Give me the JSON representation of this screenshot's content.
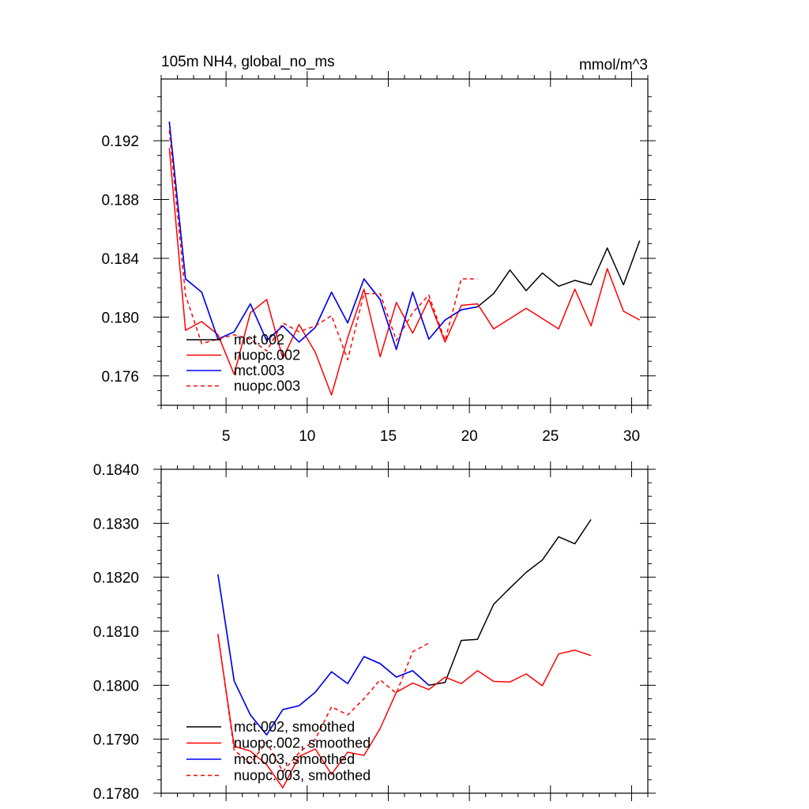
{
  "chart_data": [
    {
      "type": "line",
      "title": "105m NH4, global_no_ms",
      "units": "mmol/m^3",
      "xlim": [
        1,
        31
      ],
      "ylim": [
        0.174,
        0.1962
      ],
      "x_ticks": [
        5,
        10,
        15,
        20,
        25,
        30
      ],
      "x_tick_labels": [
        "5",
        "10",
        "15",
        "20",
        "25",
        "30"
      ],
      "y_ticks": [
        0.176,
        0.18,
        0.184,
        0.188,
        0.192
      ],
      "y_tick_labels": [
        "0.176",
        "0.180",
        "0.184",
        "0.188",
        "0.192"
      ],
      "legend": "bottom-left",
      "series": [
        {
          "name": "mct.002",
          "color": "#000000",
          "dash": false,
          "x": [
            1.5,
            2.5,
            3.5,
            4.5,
            5.5,
            6.5,
            7.5,
            8.5,
            9.5,
            10.5,
            11.5,
            12.5,
            13.5,
            14.5,
            15.5,
            16.5,
            17.5,
            18.5,
            19.5,
            20.5,
            21.5,
            22.5,
            23.5,
            24.5,
            25.5,
            26.5,
            27.5,
            28.5,
            29.5,
            30.5
          ],
          "y": [
            0.1933,
            0.1826,
            0.1817,
            0.1785,
            0.179,
            0.1809,
            0.1784,
            0.1794,
            0.1783,
            0.1793,
            0.1817,
            0.1796,
            0.1826,
            0.1812,
            0.1778,
            0.1817,
            0.1785,
            0.1798,
            0.1805,
            0.1807,
            0.1816,
            0.1832,
            0.1818,
            0.183,
            0.1821,
            0.1825,
            0.1822,
            0.1847,
            0.1822,
            0.1852
          ]
        },
        {
          "name": "nuopc.002",
          "color": "#ff0000",
          "dash": false,
          "x": [
            1.5,
            2.5,
            3.5,
            4.5,
            5.5,
            6.5,
            7.5,
            8.5,
            9.5,
            10.5,
            11.5,
            12.5,
            13.5,
            14.5,
            15.5,
            16.5,
            17.5,
            18.5,
            19.5,
            20.5,
            21.5,
            22.5,
            23.5,
            24.5,
            25.5,
            26.5,
            27.5,
            28.5,
            29.5,
            30.5
          ],
          "y": [
            0.1915,
            0.1791,
            0.1797,
            0.1788,
            0.1761,
            0.1803,
            0.1812,
            0.1772,
            0.1795,
            0.1776,
            0.1747,
            0.1786,
            0.1819,
            0.1773,
            0.181,
            0.1789,
            0.1812,
            0.1783,
            0.1808,
            0.1809,
            0.1792,
            0.1799,
            0.1806,
            0.1799,
            0.1792,
            0.1819,
            0.1794,
            0.1833,
            0.1804,
            0.1798
          ]
        },
        {
          "name": "mct.003",
          "color": "#0000ff",
          "dash": false,
          "x": [
            1.5,
            2.5,
            3.5,
            4.5,
            5.5,
            6.5,
            7.5,
            8.5,
            9.5,
            10.5,
            11.5,
            12.5,
            13.5,
            14.5,
            15.5,
            16.5,
            17.5,
            18.5,
            19.5,
            20.5
          ],
          "y": [
            0.1933,
            0.1826,
            0.1817,
            0.1785,
            0.179,
            0.1809,
            0.1784,
            0.1794,
            0.1783,
            0.1793,
            0.1817,
            0.1796,
            0.1826,
            0.1812,
            0.1778,
            0.1817,
            0.1785,
            0.1798,
            0.1805,
            0.1807
          ]
        },
        {
          "name": "nuopc.003",
          "color": "#ff0000",
          "dash": true,
          "x": [
            1.5,
            2.5,
            3.5,
            4.5,
            5.5,
            6.5,
            7.5,
            8.5,
            9.5,
            10.5,
            11.5,
            12.5,
            13.5,
            14.5,
            15.5,
            16.5,
            17.5,
            18.5,
            19.5,
            20.5
          ],
          "y": [
            0.1927,
            0.1815,
            0.1782,
            0.1785,
            0.1788,
            0.1785,
            0.1777,
            0.1796,
            0.179,
            0.1794,
            0.1801,
            0.1771,
            0.1816,
            0.1816,
            0.1784,
            0.1803,
            0.1815,
            0.1784,
            0.1826,
            0.1826
          ]
        }
      ]
    },
    {
      "type": "line",
      "xlim": [
        1,
        31
      ],
      "ylim": [
        0.178,
        0.184
      ],
      "x_ticks": [
        5,
        10,
        15,
        20,
        25,
        30
      ],
      "y_ticks": [
        0.178,
        0.179,
        0.18,
        0.181,
        0.182,
        0.183,
        0.184
      ],
      "y_tick_labels": [
        "0.1780",
        "0.1790",
        "0.1800",
        "0.1810",
        "0.1820",
        "0.1830",
        "0.1840"
      ],
      "legend": "bottom-left",
      "series": [
        {
          "name": "mct.002, smoothed",
          "color": "#000000",
          "dash": false,
          "x": [
            4.5,
            5.5,
            6.5,
            7.5,
            8.5,
            9.5,
            10.5,
            11.5,
            12.5,
            13.5,
            14.5,
            15.5,
            16.5,
            17.5,
            18.5,
            19.5,
            20.5,
            21.5,
            22.5,
            23.5,
            24.5,
            25.5,
            26.5,
            27.5
          ],
          "y": [
            0.18205,
            0.18008,
            0.17945,
            0.17908,
            0.17955,
            0.17962,
            0.17987,
            0.18025,
            0.18003,
            0.18053,
            0.1804,
            0.18015,
            0.18027,
            0.18,
            0.18005,
            0.18083,
            0.18085,
            0.1815,
            0.1818,
            0.18209,
            0.18232,
            0.18275,
            0.18262,
            0.18307
          ]
        },
        {
          "name": "nuopc.002, smoothed",
          "color": "#ff0000",
          "dash": false,
          "x": [
            4.5,
            5.5,
            6.5,
            7.5,
            8.5,
            9.5,
            10.5,
            11.5,
            12.5,
            13.5,
            14.5,
            15.5,
            16.5,
            17.5,
            18.5,
            19.5,
            20.5,
            21.5,
            22.5,
            23.5,
            24.5,
            25.5,
            26.5,
            27.5
          ],
          "y": [
            0.18093,
            0.17887,
            0.17878,
            0.17853,
            0.1781,
            0.17868,
            0.17882,
            0.17835,
            0.17876,
            0.1787,
            0.1792,
            0.17987,
            0.18004,
            0.17992,
            0.18015,
            0.18003,
            0.18027,
            0.18007,
            0.18006,
            0.18021,
            0.17999,
            0.18058,
            0.18065,
            0.18055
          ]
        },
        {
          "name": "mct.003, smoothed",
          "color": "#0000ff",
          "dash": false,
          "x": [
            4.5,
            5.5,
            6.5,
            7.5,
            8.5,
            9.5,
            10.5,
            11.5,
            12.5,
            13.5,
            14.5,
            15.5,
            16.5,
            17.5
          ],
          "y": [
            0.18205,
            0.18008,
            0.17945,
            0.17908,
            0.17955,
            0.17962,
            0.17987,
            0.18025,
            0.18003,
            0.18053,
            0.1804,
            0.18015,
            0.18027,
            0.18
          ]
        },
        {
          "name": "nuopc.003, smoothed",
          "color": "#ff0000",
          "dash": true,
          "x": [
            4.5,
            5.5,
            6.5,
            7.5,
            8.5,
            9.5,
            10.5,
            11.5,
            12.5,
            13.5,
            14.5,
            15.5,
            16.5,
            17.5
          ],
          "y": [
            0.18095,
            0.1788,
            0.17855,
            0.17895,
            0.1784,
            0.17875,
            0.179,
            0.1796,
            0.17945,
            0.17975,
            0.1801,
            0.17985,
            0.18062,
            0.18078
          ]
        }
      ]
    }
  ]
}
